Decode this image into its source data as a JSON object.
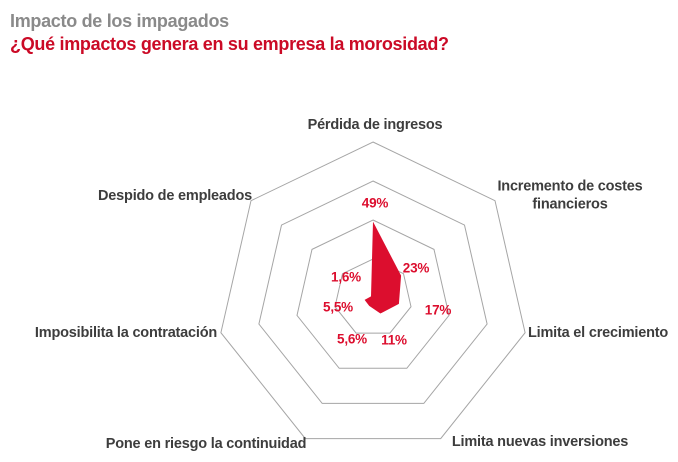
{
  "chart_data": {
    "type": "radar",
    "title": "Impacto de los impagados",
    "subtitle": "¿Qué impactos genera en su empresa la morosidad?",
    "categories": [
      "Pérdida de ingresos",
      "Incremento de costes financieros",
      "Limita el crecimiento",
      "Limita nuevas inversiones",
      "Pone en riesgo la continuidad",
      "Imposibilita la contratación",
      "Despido de empleados"
    ],
    "values": [
      49,
      23,
      17,
      11,
      5.6,
      5.5,
      1.6
    ],
    "value_labels": [
      "49%",
      "23%",
      "17%",
      "11%",
      "5,6%",
      "5,5%",
      "1,6%"
    ],
    "scale": {
      "min": 0,
      "max": 100,
      "rings": 4,
      "ring_values": [
        25,
        50,
        75,
        100
      ]
    },
    "grid": {
      "shape": "heptagon",
      "spokes": false,
      "axis_count": 7
    },
    "legend": "none"
  },
  "colors": {
    "title_gray": "#8a8a8a",
    "brand_red": "#cb0a26",
    "series_red": "#dc0e2e",
    "axis_label": "#3d3d3d",
    "grid_line": "#a5a5a5",
    "background": "#ffffff"
  }
}
